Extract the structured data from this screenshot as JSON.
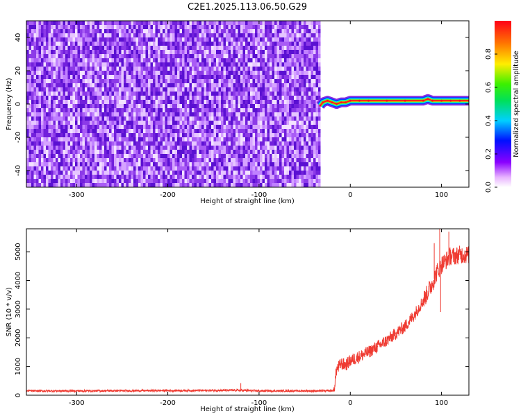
{
  "title": "C2E1.2025.113.06.50.G29",
  "colors": {
    "snr_line": "#ef3b32",
    "spectrum_low": "#7b2fe0",
    "frame": "#000000"
  },
  "chart_data": [
    {
      "type": "heatmap",
      "xlabel": "Height of straight line (km)",
      "ylabel": "Frequency (Hz)",
      "xlim": [
        -355,
        130
      ],
      "ylim": [
        -50,
        50
      ],
      "x_ticks": [
        -300,
        -200,
        -100,
        0,
        100
      ],
      "x_tick_labels": [
        "-300",
        "-200",
        "-100",
        "0",
        "100"
      ],
      "y_ticks": [
        -40,
        -20,
        0,
        20,
        40
      ],
      "y_tick_labels": [
        "-40",
        "-20",
        "0",
        "20",
        "40"
      ],
      "noise_region_x": [
        -355,
        -33
      ],
      "signal_track": {
        "x": [
          -33,
          -30,
          -25,
          -20,
          -15,
          -10,
          -5,
          0,
          10,
          20,
          40,
          60,
          80,
          85,
          90,
          100,
          110,
          120,
          130
        ],
        "y": [
          -1,
          1,
          2,
          1,
          0,
          1,
          1,
          2,
          2,
          2,
          2,
          2,
          2,
          3,
          2,
          2,
          2,
          2,
          2
        ]
      },
      "colorbar": {
        "label": "Normalized spectral amplitude",
        "range": [
          0,
          1
        ],
        "ticks": [
          0.0,
          0.2,
          0.4,
          0.6,
          0.8
        ],
        "tick_labels": [
          "0.0",
          "0.2",
          "0.4",
          "0.6",
          "0.8"
        ]
      }
    },
    {
      "type": "line",
      "xlabel": "Height of straight line (km)",
      "ylabel": "SNR (10 * v/v)",
      "xlim": [
        -355,
        130
      ],
      "ylim": [
        0,
        5800
      ],
      "x_ticks": [
        -300,
        -200,
        -100,
        0,
        100
      ],
      "x_tick_labels": [
        "-300",
        "-200",
        "-100",
        "0",
        "100"
      ],
      "y_ticks": [
        0,
        1000,
        2000,
        3000,
        4000,
        5000
      ],
      "y_tick_labels": [
        "0",
        "1000",
        "2000",
        "3000",
        "4000",
        "5000"
      ],
      "series": [
        {
          "x": [
            -355,
            -300,
            -200,
            -120,
            -100,
            -50,
            -25,
            -18,
            -15,
            -10,
            -5,
            0,
            10,
            20,
            30,
            40,
            50,
            60,
            70,
            80,
            85,
            90,
            95,
            100,
            105,
            110,
            115,
            120,
            130
          ],
          "y": [
            150,
            150,
            160,
            170,
            150,
            150,
            150,
            160,
            900,
            1100,
            1050,
            1200,
            1350,
            1500,
            1700,
            1900,
            2150,
            2400,
            2800,
            3300,
            3600,
            3900,
            4300,
            4550,
            4700,
            4850,
            4850,
            4900,
            4900
          ]
        }
      ]
    }
  ]
}
